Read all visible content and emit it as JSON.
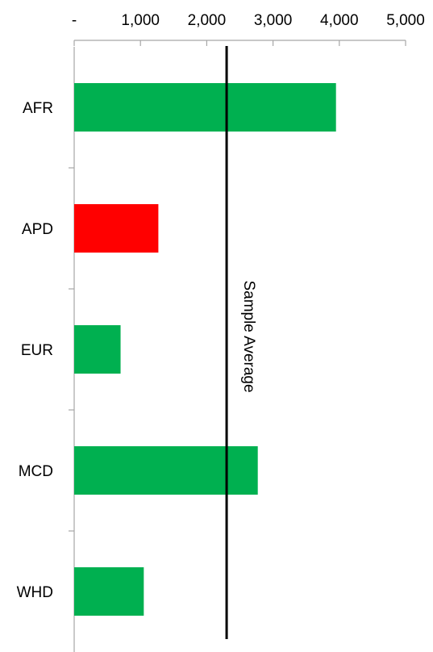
{
  "chart_data": {
    "type": "bar",
    "orientation": "horizontal",
    "title": "",
    "xlabel": "",
    "ylabel": "",
    "categories": [
      "AFR",
      "APD",
      "EUR",
      "MCD",
      "WHD"
    ],
    "values": [
      3950,
      1270,
      700,
      2770,
      1050
    ],
    "bar_colors": [
      "#00b050",
      "#ff0000",
      "#00b050",
      "#00b050",
      "#00b050"
    ],
    "xlim": [
      0,
      5000
    ],
    "x_ticks": [
      0,
      1000,
      2000,
      3000,
      4000,
      5000
    ],
    "x_tick_labels": [
      "-",
      "1,000",
      "2,000",
      "3,000",
      "4,000",
      "5,000"
    ],
    "x_axis_position": "top",
    "grid": false,
    "legend": "none",
    "reference_line": {
      "value": 2300,
      "label": "Sample Average",
      "color": "#000000"
    }
  }
}
